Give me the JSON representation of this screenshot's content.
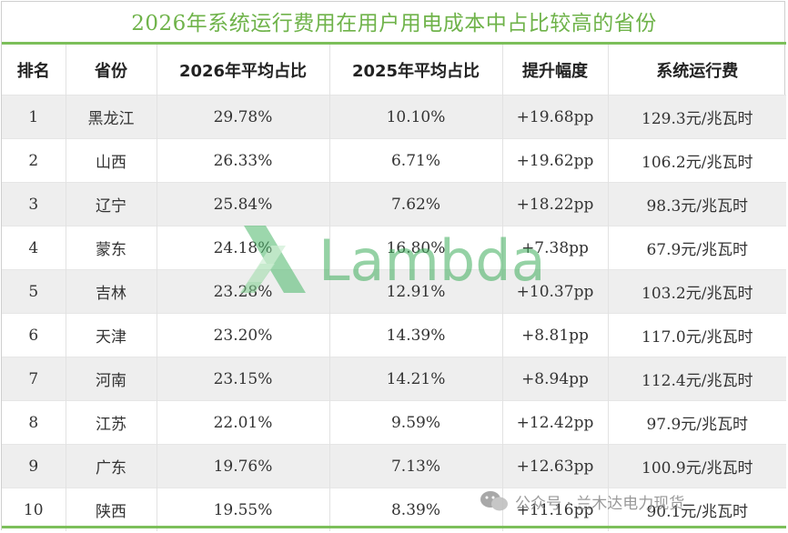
{
  "title": "2026年系统运行费用在用户用电成本中占比较高的省份",
  "headers": [
    "排名",
    "省份",
    "2026年平均占比",
    "2025年平均占比",
    "提升幅度",
    "系统运行费"
  ],
  "rows": [
    {
      "rank": "1",
      "province": "黑龙江",
      "share_2026": "29.78%",
      "share_2025": "10.10%",
      "increase": "+19.68pp",
      "fee": "129.3元/兆瓦时"
    },
    {
      "rank": "2",
      "province": "山西",
      "share_2026": "26.33%",
      "share_2025": "6.71%",
      "increase": "+19.62pp",
      "fee": "106.2元/兆瓦时"
    },
    {
      "rank": "3",
      "province": "辽宁",
      "share_2026": "25.84%",
      "share_2025": "7.62%",
      "increase": "+18.22pp",
      "fee": "98.3元/兆瓦时"
    },
    {
      "rank": "4",
      "province": "蒙东",
      "share_2026": "24.18%",
      "share_2025": "16.80%",
      "increase": "+7.38pp",
      "fee": "67.9元/兆瓦时"
    },
    {
      "rank": "5",
      "province": "吉林",
      "share_2026": "23.28%",
      "share_2025": "12.91%",
      "increase": "+10.37pp",
      "fee": "103.2元/兆瓦时"
    },
    {
      "rank": "6",
      "province": "天津",
      "share_2026": "23.20%",
      "share_2025": "14.39%",
      "increase": "+8.81pp",
      "fee": "117.0元/兆瓦时"
    },
    {
      "rank": "7",
      "province": "河南",
      "share_2026": "23.15%",
      "share_2025": "14.21%",
      "increase": "+8.94pp",
      "fee": "112.4元/兆瓦时"
    },
    {
      "rank": "8",
      "province": "江苏",
      "share_2026": "22.01%",
      "share_2025": "9.59%",
      "increase": "+12.42pp",
      "fee": "97.9元/兆瓦时"
    },
    {
      "rank": "9",
      "province": "广东",
      "share_2026": "19.76%",
      "share_2025": "7.13%",
      "increase": "+12.63pp",
      "fee": "100.9元/兆瓦时"
    },
    {
      "rank": "10",
      "province": "陕西",
      "share_2026": "19.55%",
      "share_2025": "8.39%",
      "increase": "+11.16pp",
      "fee": "90.1元/兆瓦时"
    }
  ],
  "watermark": {
    "text": "Lambda",
    "color": "#3fae5c",
    "icon": "lambda-logo-icon"
  },
  "badge": {
    "text": "公众号 · 兰木达电力现货",
    "icon": "wechat-icon"
  },
  "colors": {
    "accent": "#6fb34a",
    "row_alt": "#eeeeee"
  }
}
